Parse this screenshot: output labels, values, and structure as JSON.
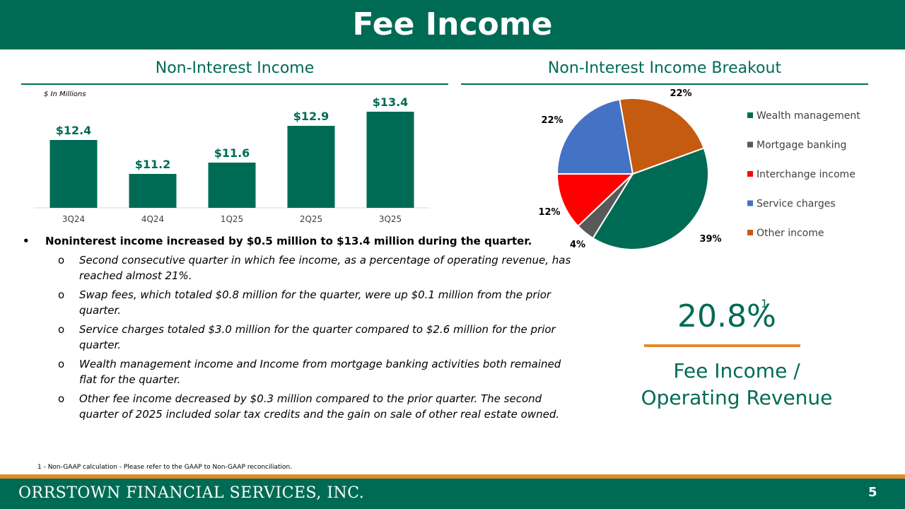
{
  "header": {
    "title": "Fee Income"
  },
  "left": {
    "section_title": "Non-Interest Income",
    "units": "$ In Millions"
  },
  "right": {
    "section_title": "Non-Interest Income Breakout"
  },
  "chart_data": [
    {
      "type": "bar",
      "title": "Non-Interest Income",
      "units": "$ In Millions",
      "categories": [
        "3Q24",
        "4Q24",
        "1Q25",
        "2Q25",
        "3Q25"
      ],
      "values": [
        12.4,
        11.2,
        11.6,
        12.9,
        13.4
      ],
      "data_labels": [
        "$12.4",
        "$11.2",
        "$11.6",
        "$12.9",
        "$13.4"
      ],
      "ylim": [
        10,
        13.6
      ],
      "color": "#006B54"
    },
    {
      "type": "pie",
      "title": "Non-Interest Income Breakout",
      "legend_position": "right",
      "slices": [
        {
          "name": "Wealth management",
          "value": 39,
          "label": "39%",
          "color": "#006B54"
        },
        {
          "name": "Mortgage banking",
          "value": 4,
          "label": "4%",
          "color": "#595959"
        },
        {
          "name": "Interchange income",
          "value": 12,
          "label": "12%",
          "color": "#FF0000"
        },
        {
          "name": "Service charges",
          "value": 22,
          "label": "22%",
          "color": "#4472C4"
        },
        {
          "name": "Other income",
          "value": 22,
          "label": "22%",
          "color": "#C55A11"
        }
      ]
    }
  ],
  "bullets": {
    "main": "Noninterest income increased by $0.5 million to $13.4 million during the quarter.",
    "main_marker": "•",
    "sub_marker": "o",
    "sub": [
      "Second consecutive quarter in which fee income, as a percentage of operating revenue, has reached almost 21%.",
      "Swap fees, which totaled $0.8 million for the quarter, were up $0.1 million from the prior quarter.",
      "Service charges totaled $3.0 million for the quarter compared to $2.6 million for the prior quarter.",
      "Wealth management income and Income from mortgage banking activities both remained flat for the quarter.",
      "Other fee income decreased by $0.3 million compared to the prior quarter. The second quarter of 2025 included solar tax credits and the gain on sale of other real estate owned."
    ]
  },
  "kpi": {
    "value": "20.8%",
    "footnote_ref": "1",
    "label_line1": "Fee Income /",
    "label_line2": "Operating Revenue"
  },
  "footnote": "1 - Non-GAAP calculation - Please refer to the GAAP to Non-GAAP reconciliation.",
  "footer": {
    "company": "ORRSTOWN FINANCIAL SERVICES, INC.",
    "page_number": "5"
  },
  "colors": {
    "brand_green": "#006B54",
    "accent_orange": "#E38A2B"
  }
}
